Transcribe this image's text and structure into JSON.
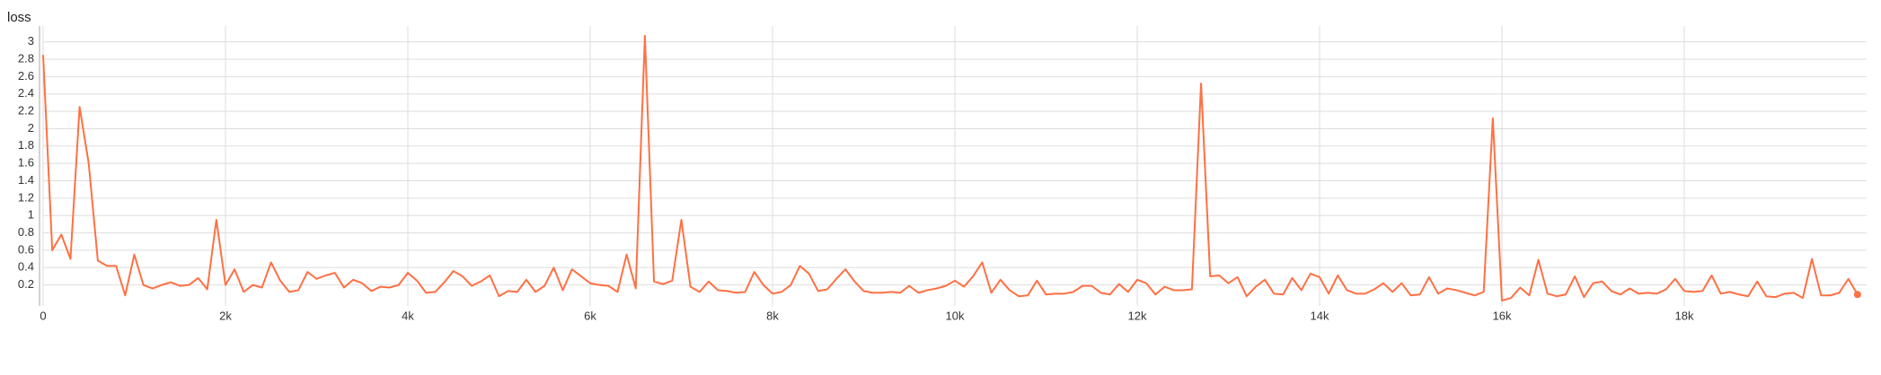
{
  "chart_data": {
    "type": "line",
    "title": "loss",
    "x": [
      0,
      100,
      200,
      300,
      400,
      500,
      600,
      700,
      800,
      900,
      1000,
      1100,
      1200,
      1300,
      1400,
      1500,
      1600,
      1700,
      1800,
      1900,
      2000,
      2100,
      2200,
      2300,
      2400,
      2500,
      2600,
      2700,
      2800,
      2900,
      3000,
      3100,
      3200,
      3300,
      3400,
      3500,
      3600,
      3700,
      3800,
      3900,
      4000,
      4100,
      4200,
      4300,
      4400,
      4500,
      4600,
      4700,
      4800,
      4900,
      5000,
      5100,
      5200,
      5300,
      5400,
      5500,
      5600,
      5700,
      5800,
      5900,
      6000,
      6100,
      6200,
      6300,
      6400,
      6500,
      6600,
      6700,
      6800,
      6900,
      7000,
      7100,
      7200,
      7300,
      7400,
      7500,
      7600,
      7700,
      7800,
      7900,
      8000,
      8100,
      8200,
      8300,
      8400,
      8500,
      8600,
      8700,
      8800,
      8900,
      9000,
      9100,
      9200,
      9300,
      9400,
      9500,
      9600,
      9700,
      9800,
      9900,
      10000,
      10100,
      10200,
      10300,
      10400,
      10500,
      10600,
      10700,
      10800,
      10900,
      11000,
      11100,
      11200,
      11300,
      11400,
      11500,
      11600,
      11700,
      11800,
      11900,
      12000,
      12100,
      12200,
      12300,
      12400,
      12500,
      12600,
      12700,
      12800,
      12900,
      13000,
      13100,
      13200,
      13300,
      13400,
      13500,
      13600,
      13700,
      13800,
      13900,
      14000,
      14100,
      14200,
      14300,
      14400,
      14500,
      14600,
      14700,
      14800,
      14900,
      15000,
      15100,
      15200,
      15300,
      15400,
      15500,
      15600,
      15700,
      15800,
      15900,
      16000,
      16100,
      16200,
      16300,
      16400,
      16500,
      16600,
      16700,
      16800,
      16900,
      17000,
      17100,
      17200,
      17300,
      17400,
      17500,
      17600,
      17700,
      17800,
      17900,
      18000,
      18100,
      18200,
      18300,
      18400,
      18500,
      18600,
      18700,
      18800,
      18900,
      19000,
      19100,
      19200,
      19300,
      19400,
      19500,
      19600,
      19700,
      19800,
      19900
    ],
    "series": [
      {
        "name": "loss",
        "color": "#ff7043",
        "values": [
          2.85,
          0.6,
          0.78,
          0.5,
          2.25,
          1.6,
          0.48,
          0.42,
          0.42,
          0.08,
          0.55,
          0.2,
          0.16,
          0.2,
          0.23,
          0.19,
          0.2,
          0.28,
          0.15,
          0.95,
          0.2,
          0.38,
          0.12,
          0.2,
          0.17,
          0.46,
          0.25,
          0.12,
          0.14,
          0.35,
          0.27,
          0.31,
          0.34,
          0.17,
          0.26,
          0.22,
          0.13,
          0.18,
          0.17,
          0.2,
          0.34,
          0.25,
          0.11,
          0.12,
          0.23,
          0.36,
          0.3,
          0.19,
          0.24,
          0.31,
          0.07,
          0.13,
          0.12,
          0.26,
          0.12,
          0.19,
          0.4,
          0.14,
          0.38,
          0.3,
          0.22,
          0.2,
          0.19,
          0.12,
          0.55,
          0.16,
          3.07,
          0.24,
          0.21,
          0.25,
          0.95,
          0.18,
          0.12,
          0.24,
          0.14,
          0.13,
          0.11,
          0.12,
          0.35,
          0.2,
          0.1,
          0.12,
          0.2,
          0.42,
          0.33,
          0.13,
          0.15,
          0.27,
          0.38,
          0.24,
          0.13,
          0.11,
          0.11,
          0.12,
          0.11,
          0.19,
          0.11,
          0.14,
          0.16,
          0.19,
          0.25,
          0.18,
          0.3,
          0.46,
          0.11,
          0.26,
          0.14,
          0.07,
          0.08,
          0.25,
          0.09,
          0.1,
          0.1,
          0.12,
          0.19,
          0.19,
          0.11,
          0.09,
          0.21,
          0.12,
          0.26,
          0.22,
          0.09,
          0.18,
          0.14,
          0.14,
          0.15,
          2.52,
          0.3,
          0.31,
          0.22,
          0.29,
          0.07,
          0.18,
          0.26,
          0.1,
          0.09,
          0.28,
          0.14,
          0.33,
          0.29,
          0.1,
          0.31,
          0.14,
          0.1,
          0.1,
          0.15,
          0.22,
          0.12,
          0.22,
          0.08,
          0.09,
          0.29,
          0.1,
          0.16,
          0.14,
          0.11,
          0.08,
          0.12,
          2.12,
          0.02,
          0.05,
          0.17,
          0.08,
          0.49,
          0.1,
          0.07,
          0.09,
          0.3,
          0.06,
          0.22,
          0.24,
          0.13,
          0.09,
          0.16,
          0.1,
          0.11,
          0.1,
          0.15,
          0.27,
          0.13,
          0.12,
          0.13,
          0.31,
          0.1,
          0.12,
          0.09,
          0.07,
          0.24,
          0.07,
          0.06,
          0.1,
          0.11,
          0.05,
          0.5,
          0.08,
          0.08,
          0.11,
          0.27,
          0.09
        ]
      }
    ],
    "xlim": [
      0,
      20000
    ],
    "xticks": [
      0,
      {
        "value": 2000,
        "label": "2k"
      },
      {
        "value": 4000,
        "label": "4k"
      },
      {
        "value": 6000,
        "label": "6k"
      },
      {
        "value": 8000,
        "label": "8k"
      },
      {
        "value": 10000,
        "label": "10k"
      },
      {
        "value": 12000,
        "label": "12k"
      },
      {
        "value": 14000,
        "label": "14k"
      },
      {
        "value": 16000,
        "label": "16k"
      },
      {
        "value": 18000,
        "label": "18k"
      }
    ],
    "ylim": [
      0,
      3.1
    ],
    "yticks": [
      0.2,
      0.4,
      0.6,
      0.8,
      1,
      1.2,
      1.4,
      1.6,
      1.8,
      2,
      2.2,
      2.4,
      2.6,
      2.8,
      3
    ],
    "grid": true
  }
}
